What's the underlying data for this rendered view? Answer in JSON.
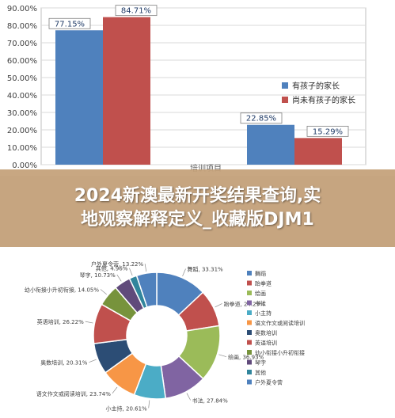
{
  "banner": {
    "line1": "2024新澳最新开奖结果查询,实",
    "line2": "地观察解释定义_收藏版DJM1"
  },
  "chart_data": [
    {
      "type": "bar",
      "categories": [
        "",
        ""
      ],
      "series": [
        {
          "name": "有孩子的家长",
          "color": "#4f81bd",
          "values": [
            77.15,
            22.85
          ],
          "labels": [
            "77.15%",
            "22.85%"
          ]
        },
        {
          "name": "尚未有孩子的家长",
          "color": "#c0504d",
          "values": [
            84.71,
            15.29
          ],
          "labels": [
            "84.71%",
            "15.29%"
          ]
        }
      ],
      "ylim": [
        0,
        90
      ],
      "yticks": [
        "0.00%",
        "10.00%",
        "20.00%",
        "30.00%",
        "40.00%",
        "50.00%",
        "60.00%",
        "70.00%",
        "80.00%",
        "90.00%"
      ],
      "xlabel": "培训项目",
      "grid": true,
      "legend": "right"
    },
    {
      "type": "pie",
      "donut": true,
      "slices": [
        {
          "name": "舞蹈",
          "value": 33.31,
          "label": "舞蹈, 33.31%",
          "color": "#4f81bd"
        },
        {
          "name": "跆拳道",
          "value": 24.29,
          "label": "跆拳道, 24.29%",
          "color": "#c0504d"
        },
        {
          "name": "绘画",
          "value": 36.93,
          "label": "绘画, 36.93%",
          "color": "#9bbb59"
        },
        {
          "name": "书法",
          "value": 27.84,
          "label": "书法, 27.84%",
          "color": "#8064a2"
        },
        {
          "name": "小主持",
          "value": 20.61,
          "label": "小主持, 20.61%",
          "color": "#4bacc6"
        },
        {
          "name": "语文作文或阅读培训",
          "value": 23.74,
          "label": "语文作文或阅读培训, 23.74%",
          "color": "#f79646"
        },
        {
          "name": "奥数培训",
          "value": 20.31,
          "label": "奥数培训, 20.31%",
          "color": "#2c4d75"
        },
        {
          "name": "英语培训",
          "value": 26.22,
          "label": "英语培训, 26.22%",
          "color": "#c0504d"
        },
        {
          "name": "幼小衔接小升初衔接",
          "value": 14.05,
          "label": "幼小衔接小升初衔接, 14.05%",
          "color": "#77933c"
        },
        {
          "name": "琴字",
          "value": 10.73,
          "label": "琴字, 10.73%",
          "color": "#604a7b"
        },
        {
          "name": "其他",
          "value": 4.96,
          "label": "其他, 4.96%",
          "color": "#31859c"
        },
        {
          "name": "户外夏令营",
          "value": 13.22,
          "label": "户外夏令营, 13.22%",
          "color": "#4f81bd"
        }
      ],
      "legend": "right"
    }
  ]
}
